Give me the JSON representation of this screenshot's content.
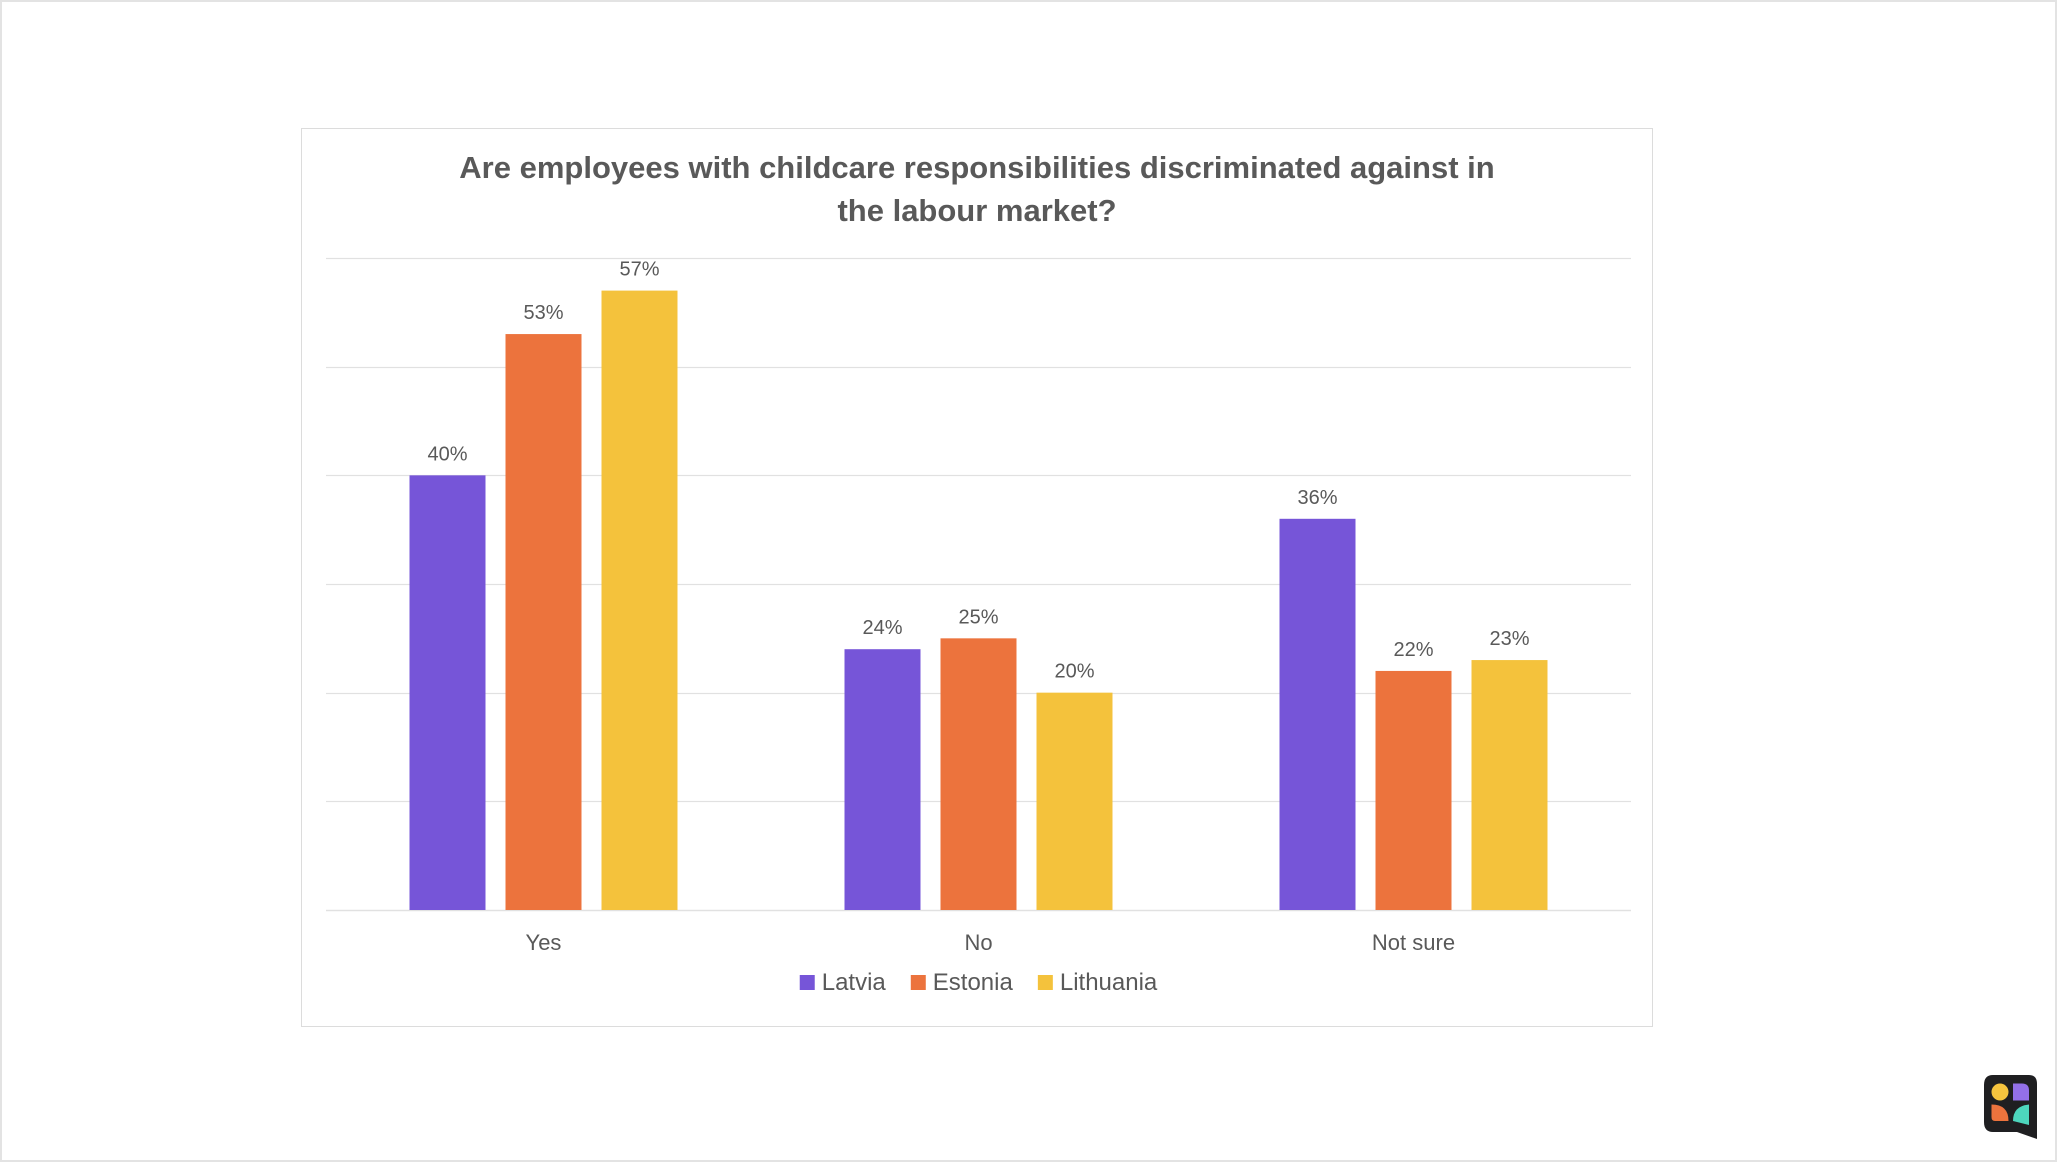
{
  "chart_data": {
    "type": "bar",
    "title": "Are employees with childcare responsibilities discriminated against in the labour market?",
    "title_lines": [
      "Are employees with childcare responsibilities discriminated against in",
      "the labour market?"
    ],
    "categories": [
      "Yes",
      "No",
      "Not sure"
    ],
    "series": [
      {
        "name": "Latvia",
        "color": "#7655D8",
        "values": [
          40,
          24,
          36
        ],
        "labels": [
          "40%",
          "24%",
          "36%"
        ]
      },
      {
        "name": "Estonia",
        "color": "#EC733D",
        "values": [
          53,
          25,
          22
        ],
        "labels": [
          "53%",
          "25%",
          "22%"
        ]
      },
      {
        "name": "Lithuania",
        "color": "#F4C23C",
        "values": [
          57,
          20,
          23
        ],
        "labels": [
          "57%",
          "20%",
          "23%"
        ]
      }
    ],
    "xlabel": "",
    "ylabel": "",
    "ylim": [
      0,
      60
    ],
    "y_grid_step": 10,
    "y_axis_labels_shown": false,
    "grid": true,
    "legend_position": "bottom",
    "unit": "%"
  },
  "colors": {
    "text": "#595959",
    "grid": "#e1e1e1",
    "border": "#dcdcdc"
  },
  "logo": {
    "icon": "brand-logo-icon",
    "colors": [
      "#1f1f21",
      "#F5C43E",
      "#9370E8",
      "#EC733D",
      "#4DD6BD"
    ]
  }
}
